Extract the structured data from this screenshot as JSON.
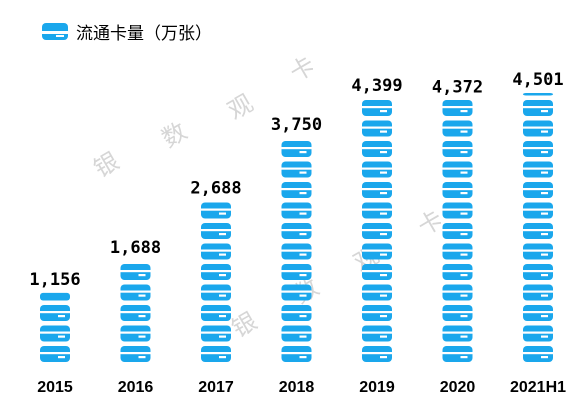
{
  "legend": {
    "label": "流通卡量（万张）",
    "icon": "bank-card-icon"
  },
  "watermark": [
    "银",
    "数",
    "观",
    "卡"
  ],
  "colors": {
    "bar": "#1aa7ec",
    "barStripe": "#ffffff",
    "text": "#000000",
    "watermark": "#d6d6d6"
  },
  "chart_data": {
    "type": "bar",
    "title": "",
    "xlabel": "",
    "ylabel": "",
    "categories": [
      "2015",
      "2016",
      "2017",
      "2018",
      "2019",
      "2020",
      "2021H1"
    ],
    "series": [
      {
        "name": "流通卡量（万张）",
        "values": [
          1156,
          1688,
          2688,
          3750,
          4399,
          4372,
          4501
        ]
      }
    ],
    "value_labels": [
      "1,156",
      "1,688",
      "2,688",
      "3,750",
      "4,399",
      "4,372",
      "4,501"
    ],
    "ylim": [
      0,
      4501
    ],
    "grid": false,
    "legend_position": "top-left"
  }
}
